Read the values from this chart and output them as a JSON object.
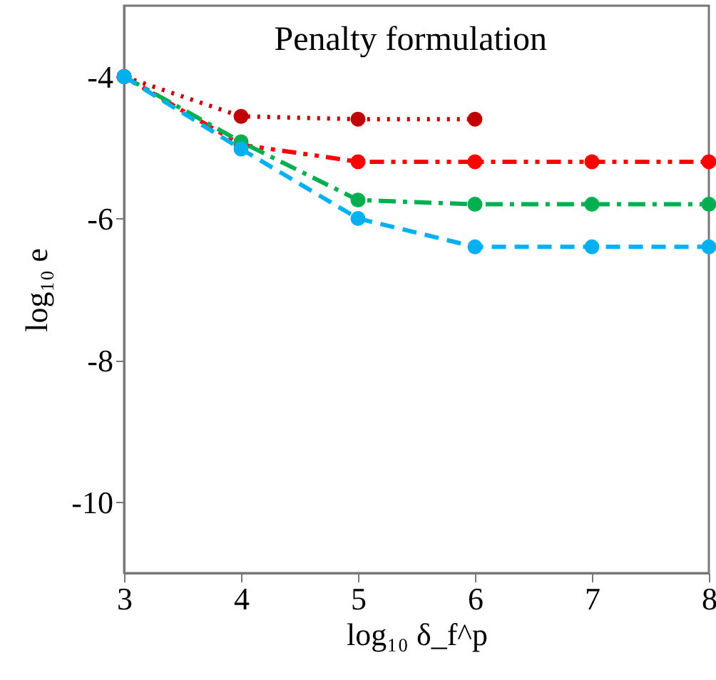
{
  "chart_data": {
    "type": "line",
    "title": "Penalty formulation",
    "xlabel": "log₁₀ δ_f^p",
    "ylabel": "log₁₀ e",
    "xlim": [
      3,
      8
    ],
    "xticks": [
      3,
      4,
      5,
      6,
      7,
      8
    ],
    "ylim": [
      -11,
      -3
    ],
    "yticks": [
      -4,
      -6,
      -8,
      -10
    ],
    "grid": false,
    "marker": "circle",
    "series": [
      {
        "color": "#c00000",
        "line_style": "dotted",
        "x": [
          3,
          4,
          5,
          6
        ],
        "values": [
          -4,
          -4.56,
          -4.6,
          -4.6
        ]
      },
      {
        "color": "#ff0000",
        "line_style": "dashdotdot",
        "x": [
          3,
          4,
          5,
          6,
          7,
          8
        ],
        "values": [
          -4,
          -4.96,
          -5.2,
          -5.2,
          -5.2,
          -5.2
        ]
      },
      {
        "color": "#00b050",
        "line_style": "dashdot",
        "x": [
          3,
          4,
          5,
          6,
          7,
          8
        ],
        "values": [
          -4,
          -4.92,
          -5.74,
          -5.8,
          -5.8,
          -5.8
        ]
      },
      {
        "color": "#00b0f0",
        "line_style": "dashed",
        "x": [
          3,
          4,
          5,
          6,
          7,
          8
        ],
        "values": [
          -4,
          -5.02,
          -6.0,
          -6.4,
          -6.4,
          -6.4
        ]
      }
    ]
  }
}
